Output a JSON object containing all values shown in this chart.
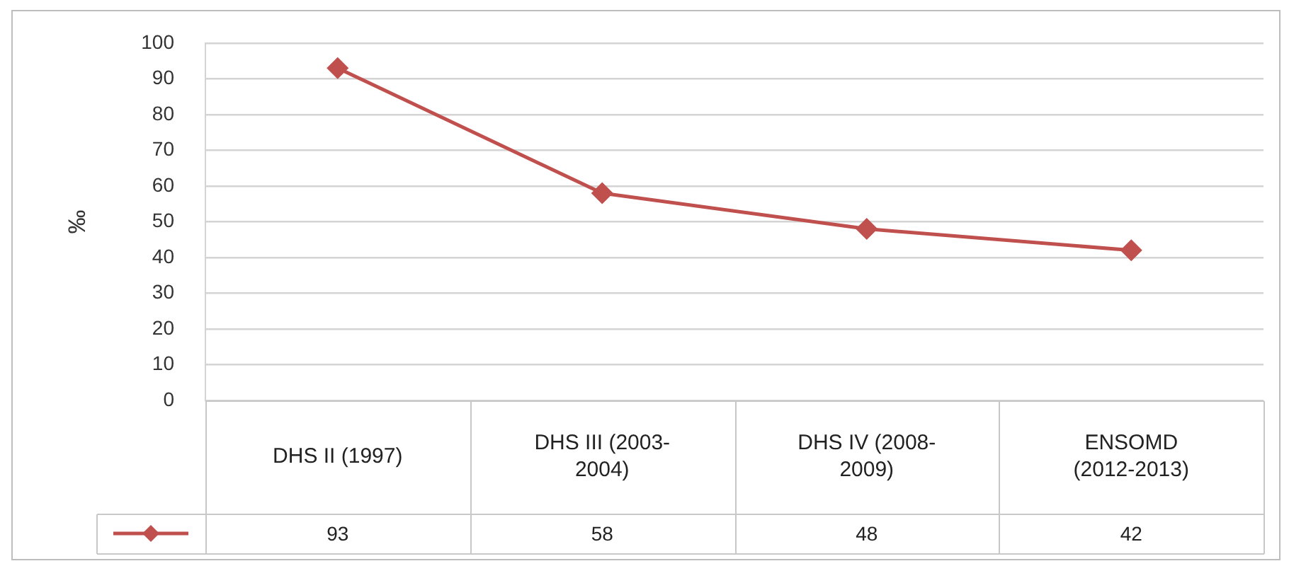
{
  "chart_data": {
    "type": "line",
    "ylabel": "‰",
    "categories": [
      "DHS II (1997)",
      "DHS III (2003-2004)",
      "DHS IV (2008-2009)",
      "ENSOMD (2012-2013)"
    ],
    "series": [
      {
        "color": "#c0504d",
        "values": [
          93,
          58,
          48,
          42
        ]
      }
    ],
    "ylim": [
      0,
      100
    ],
    "yticks": [
      0,
      10,
      20,
      30,
      40,
      50,
      60,
      70,
      80,
      90,
      100
    ],
    "grid": "y",
    "marker": "diamond",
    "line_style": "solid",
    "data_labels": true
  }
}
